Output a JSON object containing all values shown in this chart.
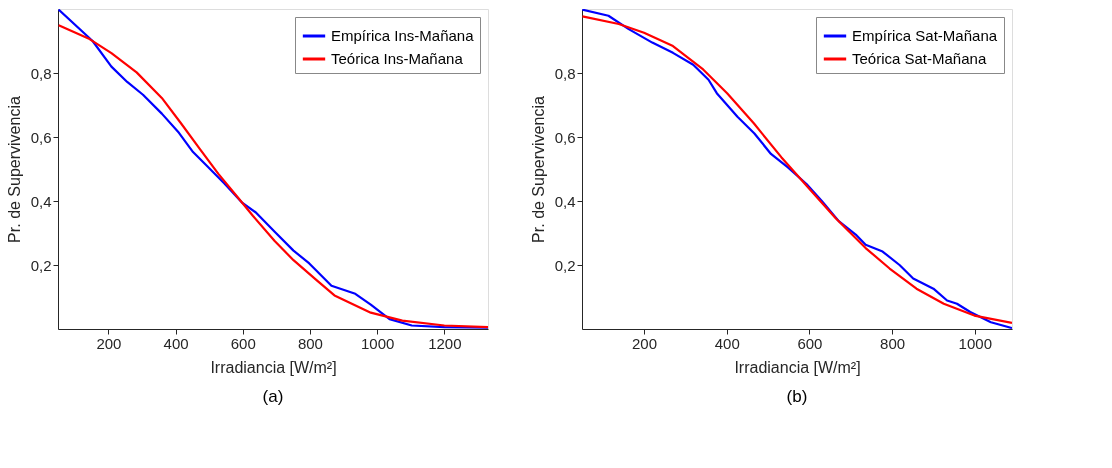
{
  "chart_data": [
    {
      "type": "line",
      "xlabel": "Irradiancia [W/m²]",
      "ylabel": "Pr. de Supervivencia",
      "annotations": [
        "(a)"
      ],
      "xlim": [
        50,
        1330
      ],
      "ylim": [
        0,
        1
      ],
      "xticks": [
        200,
        400,
        600,
        800,
        1000,
        1200
      ],
      "yticks": [
        {
          "value": 0.2,
          "label": "0,2"
        },
        {
          "value": 0.4,
          "label": "0,4"
        },
        {
          "value": 0.6,
          "label": "0,6"
        },
        {
          "value": 0.8,
          "label": "0,8"
        }
      ],
      "grid": false,
      "legend": "top right",
      "series": [
        {
          "name": "Empírica Ins-Mañana",
          "color": "#0000ff",
          "x": [
            52,
            153,
            209,
            256,
            303,
            359,
            410,
            452,
            490,
            546,
            599,
            639,
            695,
            751,
            798,
            864,
            935,
            981,
            1037,
            1103,
            1200,
            1330
          ],
          "values": [
            0.998,
            0.9,
            0.82,
            0.772,
            0.732,
            0.673,
            0.613,
            0.553,
            0.513,
            0.454,
            0.394,
            0.364,
            0.304,
            0.245,
            0.205,
            0.135,
            0.11,
            0.076,
            0.031,
            0.011,
            0.006,
            0.004
          ]
        },
        {
          "name": "Teórica Ins-Mañana",
          "color": "#ff0000",
          "x": [
            52,
            144,
            209,
            284,
            359,
            416,
            472,
            528,
            583,
            630,
            695,
            751,
            817,
            873,
            981,
            1075,
            1200,
            1330
          ],
          "values": [
            0.949,
            0.906,
            0.862,
            0.802,
            0.722,
            0.643,
            0.563,
            0.484,
            0.414,
            0.354,
            0.275,
            0.215,
            0.155,
            0.105,
            0.051,
            0.026,
            0.011,
            0.006
          ]
        }
      ]
    },
    {
      "type": "line",
      "xlabel": "Irradiancia [W/m²]",
      "ylabel": "Pr. de Supervivencia",
      "annotations": [
        "(b)"
      ],
      "xlim": [
        50,
        1090
      ],
      "ylim": [
        0,
        1
      ],
      "xticks": [
        200,
        400,
        600,
        800,
        1000
      ],
      "yticks": [
        {
          "value": 0.2,
          "label": "0,2"
        },
        {
          "value": 0.4,
          "label": "0,4"
        },
        {
          "value": 0.6,
          "label": "0,6"
        },
        {
          "value": 0.8,
          "label": "0,8"
        }
      ],
      "grid": false,
      "legend": "top right",
      "series": [
        {
          "name": "Empírica Sat-Mañana",
          "color": "#0000ff",
          "x": [
            51,
            114,
            163,
            220,
            270,
            319,
            356,
            376,
            426,
            467,
            507,
            548,
            593,
            630,
            671,
            712,
            736,
            777,
            818,
            851,
            900,
            933,
            957,
            989,
            1039,
            1090
          ],
          "values": [
            0.998,
            0.979,
            0.937,
            0.895,
            0.863,
            0.826,
            0.779,
            0.737,
            0.663,
            0.611,
            0.547,
            0.505,
            0.453,
            0.4,
            0.337,
            0.295,
            0.263,
            0.242,
            0.2,
            0.158,
            0.126,
            0.089,
            0.079,
            0.053,
            0.021,
            0.003
          ]
        },
        {
          "name": "Teórica Sat-Mañana",
          "color": "#ff0000",
          "x": [
            51,
            139,
            200,
            270,
            343,
            401,
            466,
            532,
            597,
            663,
            736,
            794,
            859,
            925,
            999,
            1090
          ],
          "values": [
            0.977,
            0.953,
            0.926,
            0.884,
            0.811,
            0.737,
            0.642,
            0.537,
            0.442,
            0.347,
            0.253,
            0.189,
            0.126,
            0.079,
            0.042,
            0.019
          ]
        }
      ]
    }
  ]
}
